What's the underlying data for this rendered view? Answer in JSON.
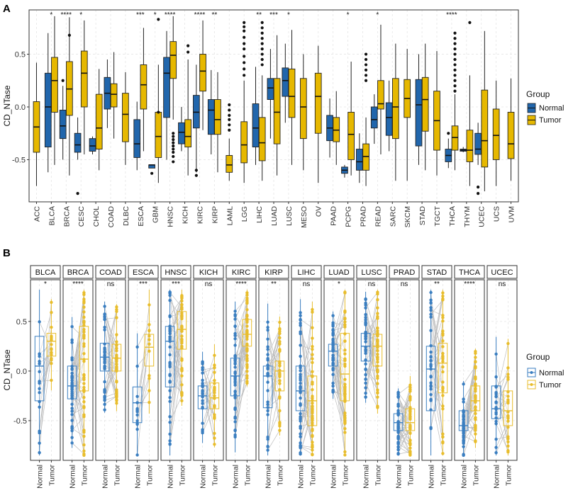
{
  "figure": {
    "panel_a_label": "A",
    "panel_b_label": "B"
  },
  "colors": {
    "normal": "#2166AC",
    "tumor": "#E6B800",
    "normal_b": "#3A7EC0",
    "tumor_b": "#E8BD2C",
    "grid": "#E5E5E5",
    "pair_line": "#BDBDBD"
  },
  "chart_data": [
    {
      "type": "box",
      "panel": "A",
      "ylabel": "CD_NTase",
      "ylim": [
        -0.9,
        0.92
      ],
      "yticks": [
        -0.5,
        0.0,
        0.5
      ],
      "ytick_labels": [
        "-0.5",
        "0.0",
        "0.5"
      ],
      "grid": true,
      "legend": {
        "title": "Group",
        "entries": [
          "Normal",
          "Tumor"
        ],
        "placement": "right"
      },
      "categories": [
        "ACC",
        "BLCA",
        "BRCA",
        "CESC",
        "CHOL",
        "COAD",
        "DLBC",
        "ESCA",
        "GBM",
        "HNSC",
        "KICH",
        "KIRC",
        "KIRP",
        "LAML",
        "LGG",
        "LIHC",
        "LUAD",
        "LUSC",
        "MESO",
        "OV",
        "PAAD",
        "PCPG",
        "PRAD",
        "READ",
        "SARC",
        "SKCM",
        "STAD",
        "TGCT",
        "THCA",
        "THYM",
        "UCEC",
        "UCS",
        "UVM"
      ],
      "significance": [
        "",
        "*",
        "****",
        "*",
        "",
        "",
        "",
        "***",
        "*",
        "****",
        "",
        "****",
        "**",
        "",
        "",
        "**",
        "***",
        "*",
        "",
        "",
        "",
        "*",
        "",
        "*",
        "",
        "",
        "",
        "",
        "****",
        "",
        "",
        "",
        ""
      ],
      "boxes": [
        {
          "category": "ACC",
          "group": "Tumor",
          "lo": -0.75,
          "q1": -0.43,
          "median": -0.19,
          "q3": 0.05,
          "hi": 0.42,
          "outliers": []
        },
        {
          "category": "BLCA",
          "group": "Normal",
          "lo": -0.62,
          "q1": -0.38,
          "median": 0.0,
          "q3": 0.32,
          "hi": 0.7,
          "outliers": []
        },
        {
          "category": "BLCA",
          "group": "Tumor",
          "lo": -0.55,
          "q1": -0.05,
          "median": 0.25,
          "q3": 0.47,
          "hi": 0.86,
          "outliers": []
        },
        {
          "category": "BRCA",
          "group": "Normal",
          "lo": -0.5,
          "q1": -0.3,
          "median": -0.18,
          "q3": -0.03,
          "hi": 0.2,
          "outliers": [
            0.25
          ]
        },
        {
          "category": "BRCA",
          "group": "Tumor",
          "lo": -0.65,
          "q1": -0.08,
          "median": 0.17,
          "q3": 0.43,
          "hi": 0.85,
          "outliers": [
            0.68
          ]
        },
        {
          "category": "CESC",
          "group": "Normal",
          "lo": -0.5,
          "q1": -0.43,
          "median": -0.36,
          "q3": -0.25,
          "hi": -0.1,
          "outliers": [
            -0.82
          ]
        },
        {
          "category": "CESC",
          "group": "Tumor",
          "lo": -0.45,
          "q1": 0.0,
          "median": 0.32,
          "q3": 0.53,
          "hi": 0.82,
          "outliers": []
        },
        {
          "category": "CHOL",
          "group": "Normal",
          "lo": -0.45,
          "q1": -0.42,
          "median": -0.37,
          "q3": -0.3,
          "hi": -0.28,
          "outliers": []
        },
        {
          "category": "CHOL",
          "group": "Tumor",
          "lo": -0.6,
          "q1": -0.4,
          "median": -0.2,
          "q3": 0.12,
          "hi": 0.36,
          "outliers": []
        },
        {
          "category": "COAD",
          "group": "Normal",
          "lo": -0.2,
          "q1": -0.02,
          "median": 0.13,
          "q3": 0.28,
          "hi": 0.45,
          "outliers": []
        },
        {
          "category": "COAD",
          "group": "Tumor",
          "lo": -0.3,
          "q1": 0.0,
          "median": 0.12,
          "q3": 0.22,
          "hi": 0.52,
          "outliers": []
        },
        {
          "category": "DLBC",
          "group": "Tumor",
          "lo": -0.55,
          "q1": -0.33,
          "median": -0.07,
          "q3": 0.13,
          "hi": 0.33,
          "outliers": []
        },
        {
          "category": "ESCA",
          "group": "Normal",
          "lo": -0.6,
          "q1": -0.48,
          "median": -0.35,
          "q3": -0.12,
          "hi": 0.05,
          "outliers": []
        },
        {
          "category": "ESCA",
          "group": "Tumor",
          "lo": -0.42,
          "q1": -0.02,
          "median": 0.21,
          "q3": 0.4,
          "hi": 0.75,
          "outliers": []
        },
        {
          "category": "GBM",
          "group": "Normal",
          "lo": -0.58,
          "q1": -0.58,
          "median": -0.55,
          "q3": -0.55,
          "hi": -0.55,
          "outliers": [
            -0.63
          ]
        },
        {
          "category": "GBM",
          "group": "Tumor",
          "lo": -0.72,
          "q1": -0.48,
          "median": -0.28,
          "q3": -0.05,
          "hi": 0.4,
          "outliers": [
            0.83,
            -0.05
          ]
        },
        {
          "category": "HNSC",
          "group": "Normal",
          "lo": -0.5,
          "q1": -0.1,
          "median": 0.32,
          "q3": 0.47,
          "hi": 0.72,
          "outliers": []
        },
        {
          "category": "HNSC",
          "group": "Tumor",
          "lo": -0.12,
          "q1": 0.27,
          "median": 0.49,
          "q3": 0.62,
          "hi": 0.86,
          "outliers": [
            -0.25,
            -0.28,
            -0.31,
            -0.34,
            -0.37,
            -0.4,
            -0.43,
            -0.47,
            -0.52
          ]
        },
        {
          "category": "KICH",
          "group": "Normal",
          "lo": -0.42,
          "q1": -0.35,
          "median": -0.24,
          "q3": -0.15,
          "hi": 0.0,
          "outliers": []
        },
        {
          "category": "KICH",
          "group": "Tumor",
          "lo": -0.65,
          "q1": -0.38,
          "median": -0.28,
          "q3": -0.12,
          "hi": 0.45,
          "outliers": [
            0.52,
            0.58
          ]
        },
        {
          "category": "KIRC",
          "group": "Normal",
          "lo": -0.62,
          "q1": -0.2,
          "median": -0.05,
          "q3": 0.11,
          "hi": 0.4,
          "outliers": [
            -0.6,
            -0.65
          ]
        },
        {
          "category": "KIRC",
          "group": "Tumor",
          "lo": -0.22,
          "q1": 0.15,
          "median": 0.34,
          "q3": 0.5,
          "hi": 0.82,
          "outliers": []
        },
        {
          "category": "KIRP",
          "group": "Normal",
          "lo": -0.45,
          "q1": -0.26,
          "median": -0.03,
          "q3": 0.07,
          "hi": 0.35,
          "outliers": []
        },
        {
          "category": "KIRP",
          "group": "Tumor",
          "lo": -0.62,
          "q1": -0.26,
          "median": -0.12,
          "q3": 0.07,
          "hi": 0.33,
          "outliers": []
        },
        {
          "category": "LAML",
          "group": "Tumor",
          "lo": -0.7,
          "q1": -0.62,
          "median": -0.55,
          "q3": -0.46,
          "hi": -0.3,
          "outliers": [
            -0.03,
            -0.08,
            -0.12,
            -0.17,
            -0.22,
            0.02
          ]
        },
        {
          "category": "LGG",
          "group": "Tumor",
          "lo": -0.72,
          "q1": -0.53,
          "median": -0.36,
          "q3": -0.14,
          "hi": 0.25,
          "outliers": [
            0.3,
            0.36,
            0.42,
            0.48,
            0.55,
            0.6,
            0.66,
            0.72,
            0.76,
            0.8
          ]
        },
        {
          "category": "LIHC",
          "group": "Normal",
          "lo": -0.55,
          "q1": -0.38,
          "median": -0.2,
          "q3": 0.03,
          "hi": 0.38,
          "outliers": []
        },
        {
          "category": "LIHC",
          "group": "Tumor",
          "lo": -0.7,
          "q1": -0.51,
          "median": -0.34,
          "q3": -0.1,
          "hi": 0.3,
          "outliers": [
            0.4,
            0.45,
            0.5,
            0.55,
            0.6,
            0.65,
            0.7,
            0.75,
            0.8
          ]
        },
        {
          "category": "LUAD",
          "group": "Normal",
          "lo": -0.3,
          "q1": 0.07,
          "median": 0.18,
          "q3": 0.27,
          "hi": 0.55,
          "outliers": []
        },
        {
          "category": "LUAD",
          "group": "Tumor",
          "lo": -0.65,
          "q1": -0.35,
          "median": -0.05,
          "q3": 0.27,
          "hi": 0.68,
          "outliers": []
        },
        {
          "category": "LUSC",
          "group": "Normal",
          "lo": -0.15,
          "q1": 0.1,
          "median": 0.25,
          "q3": 0.37,
          "hi": 0.6,
          "outliers": []
        },
        {
          "category": "LUSC",
          "group": "Tumor",
          "lo": -0.55,
          "q1": -0.1,
          "median": 0.1,
          "q3": 0.36,
          "hi": 0.73,
          "outliers": []
        },
        {
          "category": "MESO",
          "group": "Tumor",
          "lo": -0.6,
          "q1": -0.3,
          "median": 0.0,
          "q3": 0.27,
          "hi": 0.5,
          "outliers": []
        },
        {
          "category": "OV",
          "group": "Tumor",
          "lo": -0.72,
          "q1": -0.25,
          "median": 0.1,
          "q3": 0.32,
          "hi": 0.58,
          "outliers": []
        },
        {
          "category": "PAAD",
          "group": "Normal",
          "lo": -0.48,
          "q1": -0.32,
          "median": -0.2,
          "q3": -0.08,
          "hi": 0.08,
          "outliers": []
        },
        {
          "category": "PAAD",
          "group": "Tumor",
          "lo": -0.55,
          "q1": -0.33,
          "median": -0.22,
          "q3": -0.1,
          "hi": 0.15,
          "outliers": []
        },
        {
          "category": "PCPG",
          "group": "Normal",
          "lo": -0.67,
          "q1": -0.63,
          "median": -0.6,
          "q3": -0.57,
          "hi": -0.55,
          "outliers": []
        },
        {
          "category": "PCPG",
          "group": "Tumor",
          "lo": -0.65,
          "q1": -0.5,
          "median": -0.26,
          "q3": -0.05,
          "hi": 0.43,
          "outliers": []
        },
        {
          "category": "PRAD",
          "group": "Normal",
          "lo": -0.72,
          "q1": -0.6,
          "median": -0.52,
          "q3": -0.4,
          "hi": -0.25,
          "outliers": []
        },
        {
          "category": "PRAD",
          "group": "Tumor",
          "lo": -0.75,
          "q1": -0.6,
          "median": -0.47,
          "q3": -0.35,
          "hi": -0.1,
          "outliers": [
            0.25,
            0.3,
            0.35,
            0.4,
            0.45,
            0.5
          ]
        },
        {
          "category": "READ",
          "group": "Normal",
          "lo": -0.35,
          "q1": -0.2,
          "median": -0.12,
          "q3": 0.0,
          "hi": 0.12,
          "outliers": []
        },
        {
          "category": "READ",
          "group": "Tumor",
          "lo": -0.45,
          "q1": -0.02,
          "median": 0.03,
          "q3": 0.25,
          "hi": 0.78,
          "outliers": []
        },
        {
          "category": "SARC",
          "group": "Normal",
          "lo": -0.42,
          "q1": -0.27,
          "median": -0.1,
          "q3": 0.04,
          "hi": 0.25,
          "outliers": []
        },
        {
          "category": "SARC",
          "group": "Tumor",
          "lo": -0.7,
          "q1": -0.3,
          "median": 0.0,
          "q3": 0.27,
          "hi": 0.6,
          "outliers": []
        },
        {
          "category": "SKCM",
          "group": "Tumor",
          "lo": -0.7,
          "q1": -0.1,
          "median": 0.08,
          "q3": 0.26,
          "hi": 0.55,
          "outliers": []
        },
        {
          "category": "STAD",
          "group": "Normal",
          "lo": -0.55,
          "q1": -0.37,
          "median": 0.02,
          "q3": 0.26,
          "hi": 0.5,
          "outliers": []
        },
        {
          "category": "STAD",
          "group": "Tumor",
          "lo": -0.6,
          "q1": -0.23,
          "median": 0.07,
          "q3": 0.28,
          "hi": 0.6,
          "outliers": []
        },
        {
          "category": "TGCT",
          "group": "Tumor",
          "lo": -0.65,
          "q1": -0.41,
          "median": -0.13,
          "q3": 0.15,
          "hi": 0.53,
          "outliers": []
        },
        {
          "category": "THCA",
          "group": "Normal",
          "lo": -0.58,
          "q1": -0.52,
          "median": -0.46,
          "q3": -0.4,
          "hi": -0.3,
          "outliers": [
            -0.25
          ]
        },
        {
          "category": "THCA",
          "group": "Tumor",
          "lo": -0.6,
          "q1": -0.41,
          "median": -0.29,
          "q3": -0.18,
          "hi": 0.12,
          "outliers": [
            0.15,
            0.2,
            0.25,
            0.3,
            0.35,
            0.4,
            0.45,
            0.5,
            0.55,
            0.6,
            0.65,
            0.7
          ]
        },
        {
          "category": "THYM",
          "group": "Normal",
          "lo": -0.43,
          "q1": -0.42,
          "median": -0.41,
          "q3": -0.4,
          "hi": -0.38,
          "outliers": []
        },
        {
          "category": "THYM",
          "group": "Tumor",
          "lo": -0.75,
          "q1": -0.52,
          "median": -0.41,
          "q3": -0.22,
          "hi": 0.3,
          "outliers": [
            0.8
          ]
        },
        {
          "category": "UCEC",
          "group": "Normal",
          "lo": -0.55,
          "q1": -0.45,
          "median": -0.4,
          "q3": -0.25,
          "hi": -0.15,
          "outliers": [
            -0.76,
            -0.82
          ]
        },
        {
          "category": "UCEC",
          "group": "Tumor",
          "lo": -0.8,
          "q1": -0.57,
          "median": -0.32,
          "q3": 0.16,
          "hi": 0.72,
          "outliers": []
        },
        {
          "category": "UCS",
          "group": "Tumor",
          "lo": -0.75,
          "q1": -0.5,
          "median": -0.27,
          "q3": -0.02,
          "hi": 0.25,
          "outliers": []
        },
        {
          "category": "UVM",
          "group": "Tumor",
          "lo": -0.7,
          "q1": -0.49,
          "median": -0.35,
          "q3": -0.05,
          "hi": 0.27,
          "outliers": []
        }
      ]
    },
    {
      "type": "box",
      "panel": "B",
      "ylabel": "CD_NTase",
      "ylim": [
        -0.9,
        0.92
      ],
      "yticks": [
        -0.5,
        0.0,
        0.5
      ],
      "ytick_labels": [
        "-0.5",
        "0.0",
        "0.5"
      ],
      "grid": true,
      "paired_lines": true,
      "legend": {
        "title": "Group",
        "entries": [
          "Normal",
          "Tumor"
        ],
        "placement": "right"
      },
      "x_labels": [
        "Normal",
        "Tumor"
      ],
      "facets": [
        {
          "name": "BLCA",
          "sig": "*",
          "n": 18,
          "normal": [
            -0.3,
            0.05,
            0.35
          ],
          "tumor": [
            0.15,
            0.3,
            0.38
          ]
        },
        {
          "name": "BRCA",
          "sig": "****",
          "n": 110,
          "normal": [
            -0.28,
            -0.15,
            0.05
          ],
          "tumor": [
            -0.2,
            0.12,
            0.45
          ]
        },
        {
          "name": "COAD",
          "sig": "ns",
          "n": 40,
          "normal": [
            0.0,
            0.14,
            0.28
          ],
          "tumor": [
            0.0,
            0.13,
            0.27
          ]
        },
        {
          "name": "ESCA",
          "sig": "***",
          "n": 13,
          "normal": [
            -0.52,
            -0.32,
            -0.16
          ],
          "tumor": [
            0.05,
            0.24,
            0.37
          ]
        },
        {
          "name": "HNSC",
          "sig": "***",
          "n": 43,
          "normal": [
            -0.16,
            0.3,
            0.45
          ],
          "tumor": [
            0.22,
            0.42,
            0.6
          ]
        },
        {
          "name": "KICH",
          "sig": "ns",
          "n": 25,
          "normal": [
            -0.38,
            -0.25,
            -0.15
          ],
          "tumor": [
            -0.38,
            -0.27,
            -0.12
          ]
        },
        {
          "name": "KIRC",
          "sig": "****",
          "n": 72,
          "normal": [
            -0.25,
            -0.05,
            0.13
          ],
          "tumor": [
            0.25,
            0.37,
            0.52
          ]
        },
        {
          "name": "KIRP",
          "sig": "**",
          "n": 32,
          "normal": [
            -0.37,
            -0.05,
            0.05
          ],
          "tumor": [
            -0.2,
            0.0,
            0.1
          ]
        },
        {
          "name": "LIHC",
          "sig": "ns",
          "n": 50,
          "normal": [
            -0.4,
            -0.2,
            0.05
          ],
          "tumor": [
            -0.55,
            -0.3,
            -0.05
          ]
        },
        {
          "name": "LUAD",
          "sig": "*",
          "n": 58,
          "normal": [
            0.05,
            0.2,
            0.27
          ],
          "tumor": [
            -0.3,
            -0.03,
            0.38
          ]
        },
        {
          "name": "LUSC",
          "sig": "ns",
          "n": 50,
          "normal": [
            0.1,
            0.25,
            0.38
          ],
          "tumor": [
            0.05,
            0.25,
            0.37
          ]
        },
        {
          "name": "PRAD",
          "sig": "ns",
          "n": 50,
          "normal": [
            -0.6,
            -0.52,
            -0.43
          ],
          "tumor": [
            -0.6,
            -0.52,
            -0.38
          ]
        },
        {
          "name": "STAD",
          "sig": "**",
          "n": 32,
          "normal": [
            -0.4,
            0.02,
            0.25
          ],
          "tumor": [
            -0.22,
            0.08,
            0.28
          ]
        },
        {
          "name": "THCA",
          "sig": "****",
          "n": 58,
          "normal": [
            -0.6,
            -0.55,
            -0.4
          ],
          "tumor": [
            -0.4,
            -0.3,
            -0.15
          ]
        },
        {
          "name": "UCEC",
          "sig": "ns",
          "n": 22,
          "normal": [
            -0.48,
            -0.38,
            -0.15
          ],
          "tumor": [
            -0.55,
            -0.4,
            -0.2
          ]
        }
      ]
    }
  ]
}
